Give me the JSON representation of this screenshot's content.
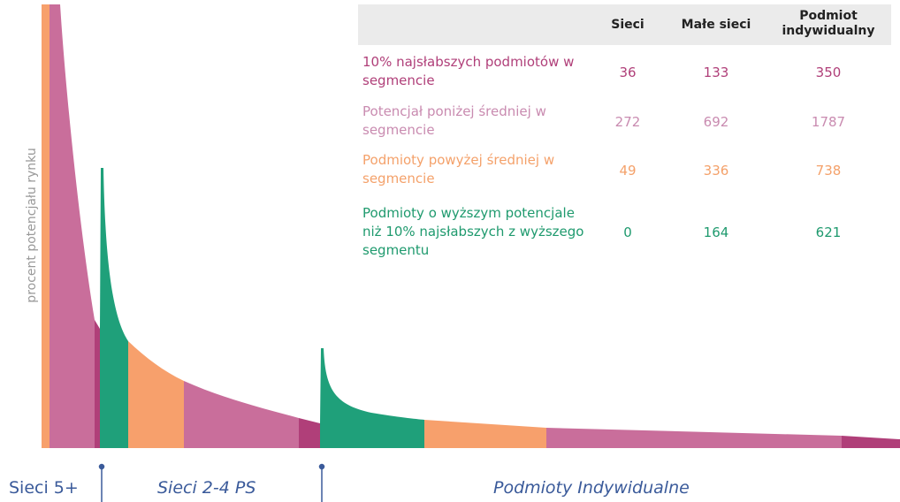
{
  "y_axis_label": "procent potencjału rynku",
  "table": {
    "headers": [
      "Sieci",
      "Małe sieci",
      "Podmiot indywidualny"
    ],
    "rows": [
      [
        "10% najsłabszych podmiotów w segmencie",
        "36",
        "133",
        "350"
      ],
      [
        "Potencjał poniżej średniej w segmencie",
        "272",
        "692",
        "1787"
      ],
      [
        "Podmioty powyżej średniej w segmencie",
        "49",
        "336",
        "738"
      ],
      [
        "Podmioty o wyższym potencjale niż 10% najsłabszych z wyższego segmentu",
        "0",
        "164",
        "621"
      ]
    ]
  },
  "segments": [
    "Sieci 5+",
    "Sieci 2-4 PS",
    "Podmioty Indywidualne"
  ]
}
